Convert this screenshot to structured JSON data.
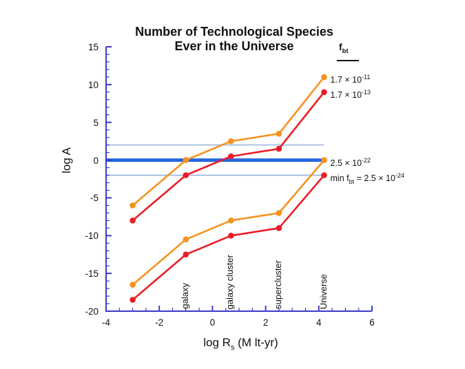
{
  "title": {
    "line1": "Number of Technological Species",
    "line2": "Ever in the Universe"
  },
  "y_axis": {
    "label": "log A"
  },
  "x_axis": {
    "label_main": "log R",
    "label_sub": "s",
    "label_unit": " (M lt-yr)"
  },
  "legend": {
    "header_main": "f",
    "header_sub": "bt",
    "entries": [
      {
        "pre": "",
        "pre_sub": "",
        "base": "1.7 × 10",
        "exp": "-11"
      },
      {
        "pre": "",
        "pre_sub": "",
        "base": "1.7 × 10",
        "exp": "-13"
      },
      {
        "pre": "",
        "pre_sub": "",
        "base": "2.5 × 10",
        "exp": "-22"
      },
      {
        "pre": "min f",
        "pre_sub": "bt",
        "base": " = 2.5 × 10",
        "exp": "-24"
      }
    ]
  },
  "colors": {
    "orange": "#F6921E",
    "red": "#EA1C25",
    "axis_blue": "#3A3ACB",
    "ref_thick_blue": "#2767E0",
    "ref_thin_blue": "#8FAFD8",
    "text": "#111111"
  },
  "chart_data": {
    "type": "line",
    "title": "Number of Technological Species Ever in the Universe",
    "xlabel": "log Rs (M lt-yr)",
    "ylabel": "log A",
    "xlim": [
      -4,
      6
    ],
    "ylim": [
      -20,
      15
    ],
    "x_ticks_major": [
      -4,
      -2,
      0,
      2,
      4,
      6
    ],
    "y_ticks_major": [
      15,
      10,
      5,
      0,
      -5,
      -10,
      -15,
      -20
    ],
    "x_minor_step": 0.5,
    "y_minor_step": 1,
    "grid": false,
    "legend_position": "right-of-last-point",
    "x": [
      -3,
      -1,
      0.7,
      2.5,
      4.2
    ],
    "series": [
      {
        "name": "f_bt = 1.7e-11",
        "color_key": "orange",
        "values": [
          -6,
          0,
          2.5,
          3.5,
          11
        ]
      },
      {
        "name": "f_bt = 1.7e-13",
        "color_key": "red",
        "values": [
          -8,
          -2,
          0.5,
          1.5,
          9
        ]
      },
      {
        "name": "f_bt = 2.5e-22",
        "color_key": "orange",
        "values": [
          -16.5,
          -10.5,
          -8,
          -7,
          0
        ]
      },
      {
        "name": "min f_bt = 2.5e-24",
        "color_key": "red",
        "values": [
          -18.5,
          -12.5,
          -10,
          -9,
          -2
        ]
      }
    ],
    "reference_lines": [
      {
        "y": 2,
        "weight": "thin",
        "x_start": -4,
        "x_end": 4.2
      },
      {
        "y": 0,
        "weight": "thick",
        "x_start": -4,
        "x_end": 4.2
      },
      {
        "y": -2,
        "weight": "thin",
        "x_start": -4,
        "x_end": 4.2
      }
    ],
    "point_annotations": [
      {
        "text": "galaxy",
        "x": -1
      },
      {
        "text": "galaxy cluster",
        "x": 0.7
      },
      {
        "text": "supercluster",
        "x": 2.5
      },
      {
        "text": "Universe",
        "x": 4.2
      }
    ]
  }
}
